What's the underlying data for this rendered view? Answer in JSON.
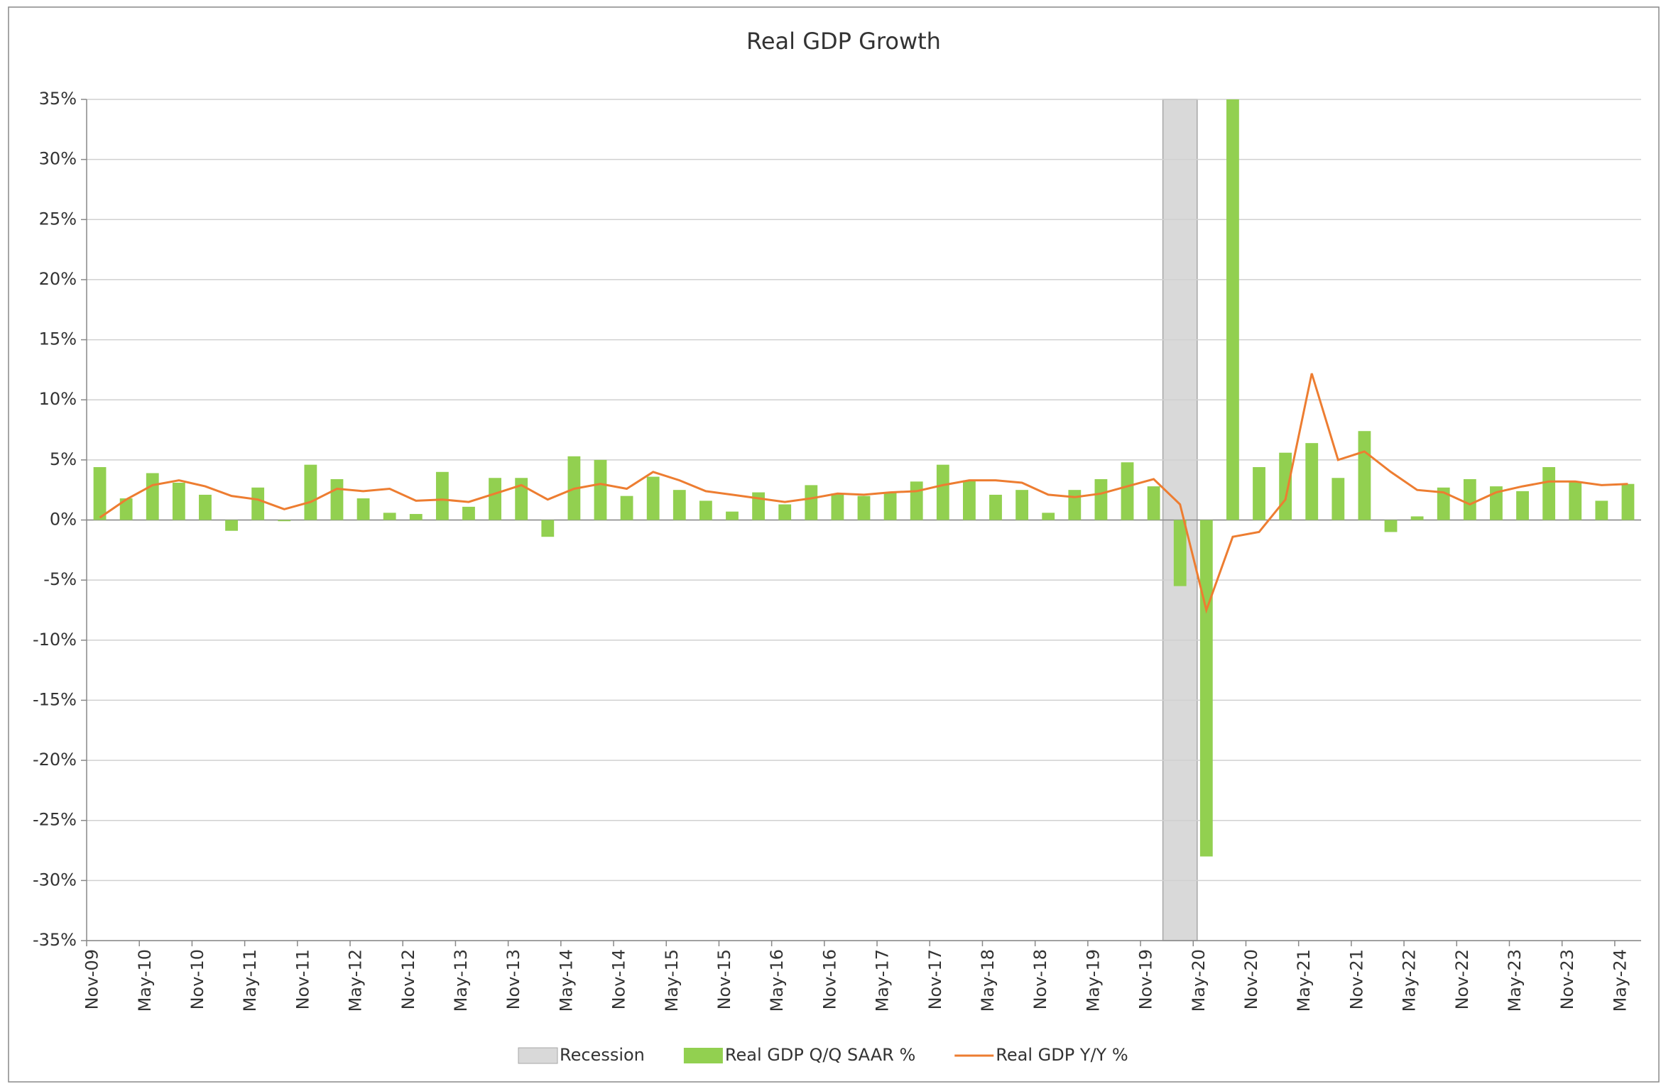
{
  "chart_data": {
    "type": "bar-line",
    "title": "Real GDP Growth",
    "categories": [
      "Nov-09",
      null,
      "May-10",
      null,
      "Nov-10",
      null,
      "May-11",
      null,
      "Nov-11",
      null,
      "May-12",
      null,
      "Nov-12",
      null,
      "May-13",
      null,
      "Nov-13",
      null,
      "May-14",
      null,
      "Nov-14",
      null,
      "May-15",
      null,
      "Nov-15",
      null,
      "May-16",
      null,
      "Nov-16",
      null,
      "May-17",
      null,
      "Nov-17",
      null,
      "May-18",
      null,
      "Nov-18",
      null,
      "May-19",
      null,
      "Nov-19",
      null,
      "May-20",
      null,
      "Nov-20",
      null,
      "May-21",
      null,
      "Nov-21",
      null,
      "May-22",
      null,
      "Nov-22",
      null,
      "May-23",
      null,
      "Nov-23",
      null,
      "May-24"
    ],
    "series": [
      {
        "name": "Recession",
        "kind": "band",
        "color": "#d9d9d9",
        "values": [
          null,
          null,
          null,
          null,
          null,
          null,
          null,
          null,
          null,
          null,
          null,
          null,
          null,
          null,
          null,
          null,
          null,
          null,
          null,
          null,
          null,
          null,
          null,
          null,
          null,
          null,
          null,
          null,
          null,
          null,
          null,
          null,
          null,
          null,
          null,
          null,
          null,
          null,
          null,
          null,
          null,
          1,
          null,
          null,
          null,
          null,
          null,
          null,
          null,
          null,
          null,
          null,
          null,
          null,
          null,
          null,
          null,
          null,
          null
        ]
      },
      {
        "name": "Real GDP Q/Q SAAR %",
        "kind": "bar",
        "color": "#92d050",
        "values": [
          4.4,
          1.8,
          3.9,
          3.1,
          2.1,
          -0.9,
          2.7,
          -0.1,
          4.6,
          3.4,
          1.8,
          0.6,
          0.5,
          4.0,
          1.1,
          3.5,
          3.5,
          -1.4,
          5.3,
          5.0,
          2.0,
          3.6,
          2.5,
          1.6,
          0.7,
          2.3,
          1.3,
          2.9,
          2.2,
          2.0,
          2.3,
          3.2,
          4.6,
          3.3,
          2.1,
          2.5,
          0.6,
          2.5,
          3.4,
          4.8,
          2.8,
          -5.5,
          -28.0,
          35,
          4.4,
          5.6,
          6.4,
          3.5,
          7.4,
          -1.0,
          0.3,
          2.7,
          3.4,
          2.8,
          2.4,
          4.4,
          3.2,
          1.6,
          3.0
        ]
      },
      {
        "name": "Real GDP Y/Y %",
        "kind": "line",
        "color": "#ed7d31",
        "values": [
          0.2,
          1.7,
          2.9,
          3.3,
          2.8,
          2.0,
          1.7,
          0.9,
          1.5,
          2.6,
          2.4,
          2.6,
          1.6,
          1.7,
          1.5,
          2.2,
          2.9,
          1.7,
          2.6,
          3.0,
          2.6,
          4.0,
          3.3,
          2.4,
          2.1,
          1.8,
          1.5,
          1.8,
          2.2,
          2.1,
          2.3,
          2.4,
          2.9,
          3.3,
          3.3,
          3.1,
          2.1,
          1.9,
          2.2,
          2.8,
          3.4,
          1.3,
          -7.5,
          -1.4,
          -1.0,
          1.7,
          12.2,
          5.0,
          5.7,
          4.0,
          2.5,
          2.3,
          1.3,
          2.3,
          2.8,
          3.2,
          3.2,
          2.9,
          3.0
        ]
      }
    ],
    "ylim": [
      -35,
      35
    ],
    "yticks": [
      {
        "value": -35,
        "label": "-35%"
      },
      {
        "value": -30,
        "label": "-30%"
      },
      {
        "value": -25,
        "label": "-25%"
      },
      {
        "value": -20,
        "label": "-20%"
      },
      {
        "value": -15,
        "label": "-15%"
      },
      {
        "value": -10,
        "label": "-10%"
      },
      {
        "value": -5,
        "label": "-5%"
      },
      {
        "value": 0,
        "label": "0%"
      },
      {
        "value": 5,
        "label": "5%"
      },
      {
        "value": 10,
        "label": "10%"
      },
      {
        "value": 15,
        "label": "15%"
      },
      {
        "value": 20,
        "label": "20%"
      },
      {
        "value": 25,
        "label": "25%"
      },
      {
        "value": 30,
        "label": "30%"
      },
      {
        "value": 35,
        "label": "35%"
      }
    ],
    "grid": true,
    "legend": "bottom"
  }
}
